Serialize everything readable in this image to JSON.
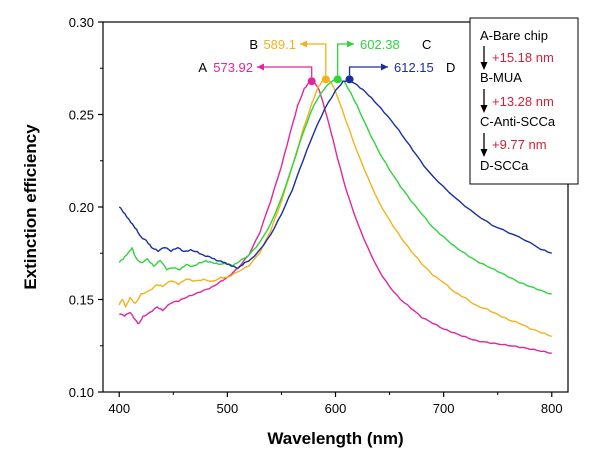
{
  "chart_data": {
    "type": "line",
    "title": "",
    "xlabel": "Wavelength (nm)",
    "ylabel": "Extinction efficiency",
    "xlim": [
      385,
      815
    ],
    "ylim": [
      0.1,
      0.3
    ],
    "xticks": [
      "400",
      "500",
      "600",
      "700",
      "800"
    ],
    "yticks": [
      "0.10",
      "0.15",
      "0.20",
      "0.25",
      "0.30"
    ],
    "grid": false,
    "legend_position": "top-right",
    "series": [
      {
        "name": "A",
        "color": "#e0269e",
        "peak": {
          "x": 578,
          "y": 0.268,
          "label": "573.92",
          "letter": "A"
        },
        "points": [
          [
            400,
            0.142
          ],
          [
            405,
            0.141
          ],
          [
            410,
            0.143
          ],
          [
            415,
            0.139
          ],
          [
            418,
            0.137
          ],
          [
            422,
            0.141
          ],
          [
            428,
            0.143
          ],
          [
            435,
            0.146
          ],
          [
            440,
            0.144
          ],
          [
            448,
            0.148
          ],
          [
            455,
            0.149
          ],
          [
            462,
            0.151
          ],
          [
            470,
            0.153
          ],
          [
            478,
            0.155
          ],
          [
            486,
            0.157
          ],
          [
            494,
            0.16
          ],
          [
            500,
            0.162
          ],
          [
            510,
            0.167
          ],
          [
            520,
            0.174
          ],
          [
            530,
            0.186
          ],
          [
            540,
            0.203
          ],
          [
            550,
            0.222
          ],
          [
            558,
            0.24
          ],
          [
            565,
            0.255
          ],
          [
            571,
            0.264
          ],
          [
            576,
            0.268
          ],
          [
            580,
            0.268
          ],
          [
            585,
            0.263
          ],
          [
            590,
            0.253
          ],
          [
            596,
            0.24
          ],
          [
            602,
            0.226
          ],
          [
            610,
            0.209
          ],
          [
            620,
            0.192
          ],
          [
            630,
            0.178
          ],
          [
            640,
            0.166
          ],
          [
            650,
            0.157
          ],
          [
            660,
            0.15
          ],
          [
            670,
            0.145
          ],
          [
            680,
            0.14
          ],
          [
            690,
            0.137
          ],
          [
            700,
            0.134
          ],
          [
            710,
            0.132
          ],
          [
            720,
            0.13
          ],
          [
            730,
            0.128
          ],
          [
            740,
            0.127
          ],
          [
            750,
            0.126
          ],
          [
            760,
            0.125
          ],
          [
            770,
            0.124
          ],
          [
            780,
            0.123
          ],
          [
            790,
            0.122
          ],
          [
            800,
            0.121
          ]
        ]
      },
      {
        "name": "B",
        "color": "#f2b21c",
        "peak": {
          "x": 591,
          "y": 0.269,
          "label": "589.1",
          "letter": "B"
        },
        "points": [
          [
            400,
            0.147
          ],
          [
            403,
            0.15
          ],
          [
            406,
            0.146
          ],
          [
            410,
            0.151
          ],
          [
            415,
            0.148
          ],
          [
            420,
            0.153
          ],
          [
            428,
            0.155
          ],
          [
            435,
            0.158
          ],
          [
            440,
            0.157
          ],
          [
            448,
            0.16
          ],
          [
            455,
            0.158
          ],
          [
            462,
            0.161
          ],
          [
            470,
            0.16
          ],
          [
            478,
            0.161
          ],
          [
            486,
            0.16
          ],
          [
            494,
            0.162
          ],
          [
            500,
            0.162
          ],
          [
            510,
            0.165
          ],
          [
            520,
            0.168
          ],
          [
            530,
            0.175
          ],
          [
            540,
            0.187
          ],
          [
            550,
            0.203
          ],
          [
            560,
            0.222
          ],
          [
            570,
            0.242
          ],
          [
            578,
            0.256
          ],
          [
            584,
            0.265
          ],
          [
            589,
            0.269
          ],
          [
            593,
            0.269
          ],
          [
            598,
            0.265
          ],
          [
            604,
            0.256
          ],
          [
            610,
            0.246
          ],
          [
            620,
            0.23
          ],
          [
            630,
            0.216
          ],
          [
            640,
            0.203
          ],
          [
            650,
            0.193
          ],
          [
            660,
            0.184
          ],
          [
            670,
            0.176
          ],
          [
            680,
            0.169
          ],
          [
            690,
            0.163
          ],
          [
            700,
            0.159
          ],
          [
            710,
            0.154
          ],
          [
            720,
            0.151
          ],
          [
            730,
            0.147
          ],
          [
            740,
            0.145
          ],
          [
            750,
            0.142
          ],
          [
            760,
            0.139
          ],
          [
            770,
            0.137
          ],
          [
            780,
            0.134
          ],
          [
            790,
            0.132
          ],
          [
            800,
            0.13
          ]
        ]
      },
      {
        "name": "C",
        "color": "#2fd43b",
        "peak": {
          "x": 602,
          "y": 0.269,
          "label": "602.38",
          "letter": "C"
        },
        "points": [
          [
            400,
            0.17
          ],
          [
            404,
            0.172
          ],
          [
            408,
            0.175
          ],
          [
            412,
            0.178
          ],
          [
            415,
            0.173
          ],
          [
            420,
            0.17
          ],
          [
            426,
            0.172
          ],
          [
            432,
            0.168
          ],
          [
            438,
            0.171
          ],
          [
            444,
            0.166
          ],
          [
            450,
            0.167
          ],
          [
            456,
            0.166
          ],
          [
            462,
            0.169
          ],
          [
            468,
            0.168
          ],
          [
            474,
            0.17
          ],
          [
            480,
            0.171
          ],
          [
            486,
            0.17
          ],
          [
            492,
            0.169
          ],
          [
            500,
            0.169
          ],
          [
            505,
            0.168
          ],
          [
            510,
            0.17
          ],
          [
            520,
            0.174
          ],
          [
            530,
            0.181
          ],
          [
            540,
            0.191
          ],
          [
            550,
            0.205
          ],
          [
            560,
            0.222
          ],
          [
            570,
            0.24
          ],
          [
            580,
            0.255
          ],
          [
            590,
            0.264
          ],
          [
            597,
            0.268
          ],
          [
            602,
            0.269
          ],
          [
            608,
            0.268
          ],
          [
            614,
            0.262
          ],
          [
            620,
            0.255
          ],
          [
            630,
            0.242
          ],
          [
            640,
            0.23
          ],
          [
            650,
            0.22
          ],
          [
            660,
            0.211
          ],
          [
            670,
            0.203
          ],
          [
            680,
            0.196
          ],
          [
            690,
            0.189
          ],
          [
            700,
            0.184
          ],
          [
            710,
            0.179
          ],
          [
            720,
            0.175
          ],
          [
            730,
            0.171
          ],
          [
            740,
            0.168
          ],
          [
            750,
            0.165
          ],
          [
            760,
            0.162
          ],
          [
            770,
            0.159
          ],
          [
            780,
            0.157
          ],
          [
            790,
            0.155
          ],
          [
            800,
            0.153
          ]
        ]
      },
      {
        "name": "D",
        "color": "#1a2ea0",
        "peak": {
          "x": 613,
          "y": 0.269,
          "label": "612.15",
          "letter": "D"
        },
        "points": [
          [
            400,
            0.2
          ],
          [
            404,
            0.197
          ],
          [
            408,
            0.194
          ],
          [
            412,
            0.191
          ],
          [
            416,
            0.188
          ],
          [
            420,
            0.184
          ],
          [
            425,
            0.182
          ],
          [
            430,
            0.178
          ],
          [
            436,
            0.176
          ],
          [
            442,
            0.178
          ],
          [
            448,
            0.176
          ],
          [
            454,
            0.178
          ],
          [
            460,
            0.176
          ],
          [
            466,
            0.177
          ],
          [
            472,
            0.176
          ],
          [
            478,
            0.174
          ],
          [
            484,
            0.173
          ],
          [
            490,
            0.171
          ],
          [
            496,
            0.17
          ],
          [
            500,
            0.169
          ],
          [
            504,
            0.168
          ],
          [
            510,
            0.167
          ],
          [
            516,
            0.17
          ],
          [
            522,
            0.172
          ],
          [
            530,
            0.177
          ],
          [
            540,
            0.185
          ],
          [
            550,
            0.196
          ],
          [
            560,
            0.209
          ],
          [
            570,
            0.225
          ],
          [
            580,
            0.24
          ],
          [
            590,
            0.253
          ],
          [
            600,
            0.263
          ],
          [
            607,
            0.268
          ],
          [
            613,
            0.269
          ],
          [
            620,
            0.266
          ],
          [
            628,
            0.262
          ],
          [
            636,
            0.257
          ],
          [
            645,
            0.251
          ],
          [
            655,
            0.244
          ],
          [
            665,
            0.236
          ],
          [
            675,
            0.228
          ],
          [
            685,
            0.22
          ],
          [
            700,
            0.211
          ],
          [
            715,
            0.203
          ],
          [
            730,
            0.196
          ],
          [
            745,
            0.19
          ],
          [
            760,
            0.186
          ],
          [
            775,
            0.182
          ],
          [
            790,
            0.177
          ],
          [
            800,
            0.175
          ]
        ]
      }
    ]
  },
  "legend": {
    "steps": [
      "A-Bare chip",
      "B-MUA",
      "C-Anti-SCCa",
      "D-SCCa"
    ],
    "shifts": [
      "+15.18 nm",
      "+13.28 nm",
      "+9.77 nm"
    ]
  }
}
